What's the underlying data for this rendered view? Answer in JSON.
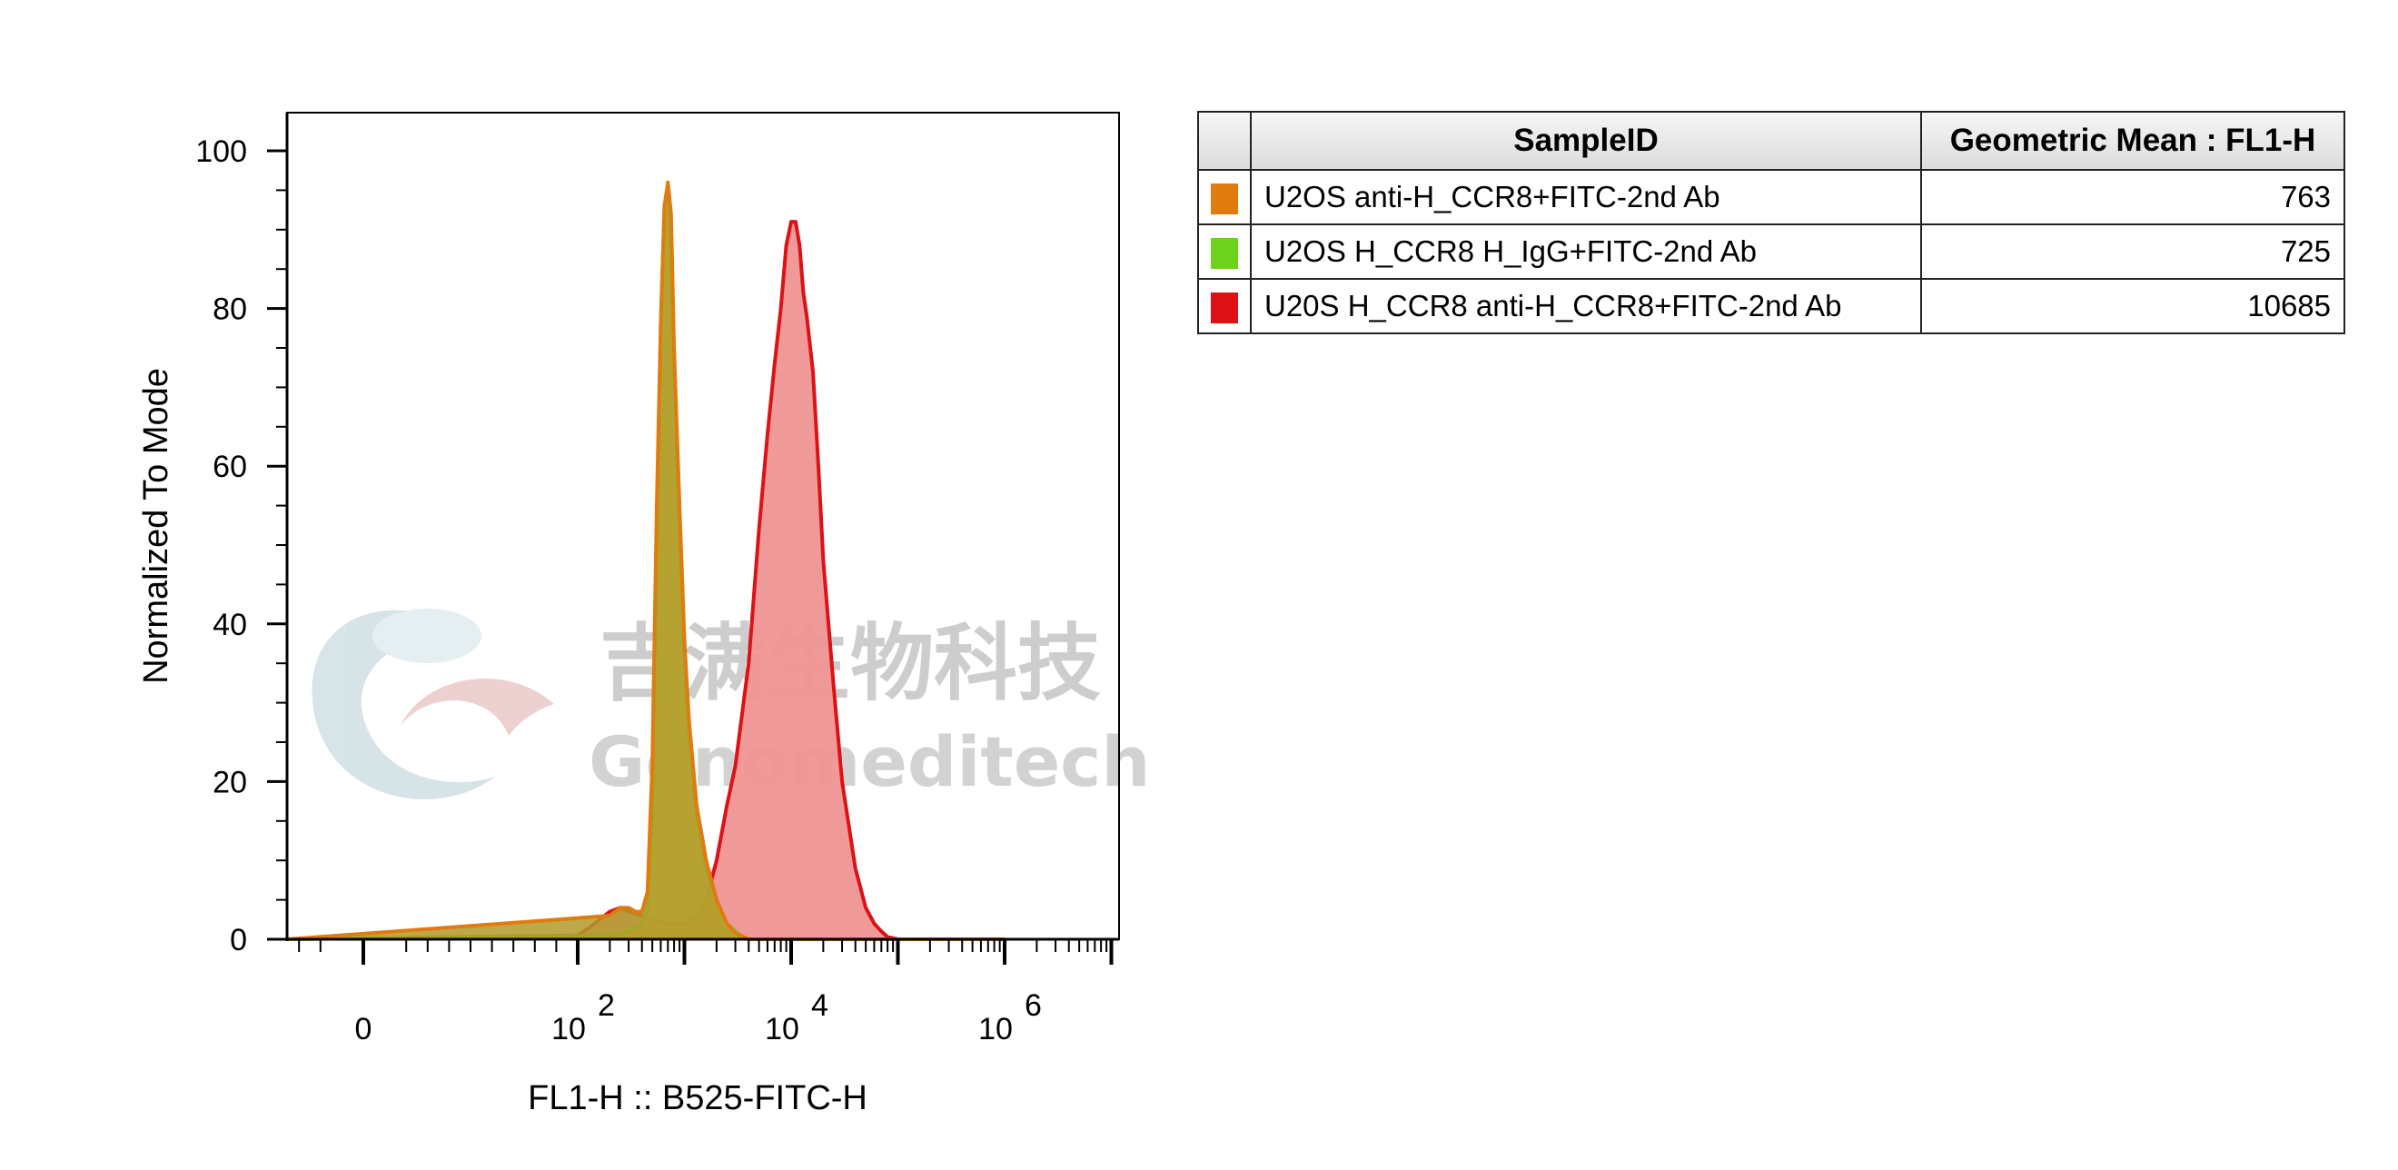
{
  "chart_data": {
    "type": "area",
    "xlabel": "FL1-H :: B525-FITC-H",
    "ylabel": "Normalized To Mode",
    "x_scale": "biexponential",
    "ylim": [
      0,
      100
    ],
    "y_ticks": [
      0,
      20,
      40,
      60,
      80,
      100
    ],
    "x_tick_labels": [
      {
        "value": 0,
        "base": "0",
        "exp": ""
      },
      {
        "value": 100,
        "base": "10",
        "exp": "2"
      },
      {
        "value": 10000,
        "base": "10",
        "exp": "4"
      },
      {
        "value": 1000000,
        "base": "10",
        "exp": "6"
      }
    ],
    "series": [
      {
        "name": "U2OS anti-H_CCR8+FITC-2nd Ab",
        "color": "#e07b10",
        "fill": "#b29a2a",
        "x": [
          -1000,
          200,
          250,
          300,
          350,
          400,
          450,
          500,
          550,
          600,
          650,
          700,
          750,
          800,
          900,
          1000,
          1100,
          1300,
          1600,
          2000,
          2500,
          3000,
          4000,
          5000,
          10000,
          1000000
        ],
        "y": [
          0,
          3,
          4,
          4,
          3.5,
          3.5,
          6,
          22,
          55,
          78,
          93,
          96,
          92,
          75,
          55,
          38,
          28,
          17,
          10,
          5,
          2,
          0.8,
          0,
          0,
          0,
          0
        ]
      },
      {
        "name": "U2OS H_CCR8 H_IgG+FITC-2nd Ab",
        "color": "#6ed21c",
        "fill": "#c6c43a",
        "x": [
          -1000,
          200,
          300,
          400,
          450,
          500,
          550,
          600,
          650,
          700,
          750,
          800,
          900,
          1000,
          1100,
          1300,
          1600,
          2000,
          2500,
          3000,
          3500,
          4000,
          10000,
          1000000
        ],
        "y": [
          0,
          0.5,
          1,
          2,
          4,
          16,
          50,
          78,
          93,
          95,
          90,
          72,
          52,
          36,
          26,
          16,
          9,
          5,
          2,
          1,
          0.3,
          0,
          0,
          0
        ]
      },
      {
        "name": "U20S H_CCR8 anti-H_CCR8+FITC-2nd Ab",
        "color": "#dd1216",
        "fill": "#ef9394",
        "x": [
          -1000,
          100,
          130,
          160,
          200,
          250,
          300,
          400,
          500,
          700,
          1000,
          1300,
          1600,
          2000,
          2500,
          3000,
          4000,
          5000,
          6000,
          7000,
          8000,
          9000,
          10000,
          11000,
          12000,
          13000,
          14000,
          16000,
          18000,
          20000,
          25000,
          30000,
          40000,
          50000,
          60000,
          70000,
          80000,
          100000,
          1000000
        ],
        "y": [
          0,
          0.5,
          1.5,
          2.5,
          3.5,
          4,
          3.5,
          3,
          2.5,
          2,
          2,
          3,
          5,
          10,
          17,
          22,
          35,
          52,
          64,
          73,
          80,
          88,
          91,
          91,
          88,
          82,
          79,
          72,
          60,
          48,
          32,
          20,
          9,
          4,
          2,
          1,
          0.3,
          0,
          0
        ]
      }
    ]
  },
  "legend": {
    "header_sample": "SampleID",
    "header_value": "Geometric Mean : FL1-H",
    "rows": [
      {
        "color": "#e07b10",
        "name": "U2OS anti-H_CCR8+FITC-2nd Ab",
        "value": "763"
      },
      {
        "color": "#6ed21c",
        "name": "U2OS H_CCR8 H_IgG+FITC-2nd Ab",
        "value": "725"
      },
      {
        "color": "#dd1216",
        "name": "U20S H_CCR8 anti-H_CCR8+FITC-2nd Ab",
        "value": "10685"
      }
    ]
  },
  "watermark": {
    "text_cn": "吉满生物科技",
    "text_en": "Genomeditech"
  }
}
